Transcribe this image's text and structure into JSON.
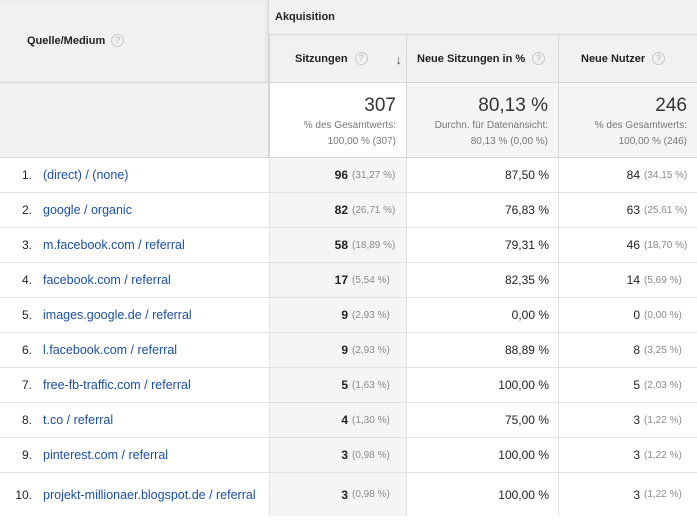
{
  "header": {
    "dimension_label": "Quelle/Medium",
    "group_label": "Akquisition",
    "columns": {
      "sessions": "Sitzungen",
      "new_sessions_pct": "Neue Sitzungen in %",
      "new_users": "Neue Nutzer"
    },
    "help_glyph": "?",
    "sort_glyph": "↓"
  },
  "totals": {
    "sessions": {
      "value": "307",
      "sub1": "% des Gesamtwerts:",
      "sub2": "100,00 % (307)"
    },
    "new_sessions_pct": {
      "value": "80,13 %",
      "sub1": "Durchn. für Datenansicht:",
      "sub2": "80,13 % (0,00 %)"
    },
    "new_users": {
      "value": "246",
      "sub1": "% des Gesamtwerts:",
      "sub2": "100,00 % (246)"
    }
  },
  "rows": [
    {
      "idx": "1.",
      "source": "(direct) / (none)",
      "sessions": "96",
      "sessions_pct": "(31,27 %)",
      "new_pct": "87,50 %",
      "new_users": "84",
      "new_users_pct": "(34,15 %)"
    },
    {
      "idx": "2.",
      "source": "google / organic",
      "sessions": "82",
      "sessions_pct": "(26,71 %)",
      "new_pct": "76,83 %",
      "new_users": "63",
      "new_users_pct": "(25,61 %)"
    },
    {
      "idx": "3.",
      "source": "m.facebook.com / referral",
      "sessions": "58",
      "sessions_pct": "(18,89 %)",
      "new_pct": "79,31 %",
      "new_users": "46",
      "new_users_pct": "(18,70 %)"
    },
    {
      "idx": "4.",
      "source": "facebook.com / referral",
      "sessions": "17",
      "sessions_pct": "(5,54 %)",
      "new_pct": "82,35 %",
      "new_users": "14",
      "new_users_pct": "(5,69 %)"
    },
    {
      "idx": "5.",
      "source": "images.google.de / referral",
      "sessions": "9",
      "sessions_pct": "(2,93 %)",
      "new_pct": "0,00 %",
      "new_users": "0",
      "new_users_pct": "(0,00 %)"
    },
    {
      "idx": "6.",
      "source": "l.facebook.com / referral",
      "sessions": "9",
      "sessions_pct": "(2,93 %)",
      "new_pct": "88,89 %",
      "new_users": "8",
      "new_users_pct": "(3,25 %)"
    },
    {
      "idx": "7.",
      "source": "free-fb-traffic.com / referral",
      "sessions": "5",
      "sessions_pct": "(1,63 %)",
      "new_pct": "100,00 %",
      "new_users": "5",
      "new_users_pct": "(2,03 %)"
    },
    {
      "idx": "8.",
      "source": "t.co / referral",
      "sessions": "4",
      "sessions_pct": "(1,30 %)",
      "new_pct": "75,00 %",
      "new_users": "3",
      "new_users_pct": "(1,22 %)"
    },
    {
      "idx": "9.",
      "source": "pinterest.com / referral",
      "sessions": "3",
      "sessions_pct": "(0,98 %)",
      "new_pct": "100,00 %",
      "new_users": "3",
      "new_users_pct": "(1,22 %)"
    },
    {
      "idx": "10.",
      "source": "projekt-millionaer.blogspot.de / referral",
      "sessions": "3",
      "sessions_pct": "(0,98 %)",
      "new_pct": "100,00 %",
      "new_users": "3",
      "new_users_pct": "(1,22 %)"
    }
  ]
}
